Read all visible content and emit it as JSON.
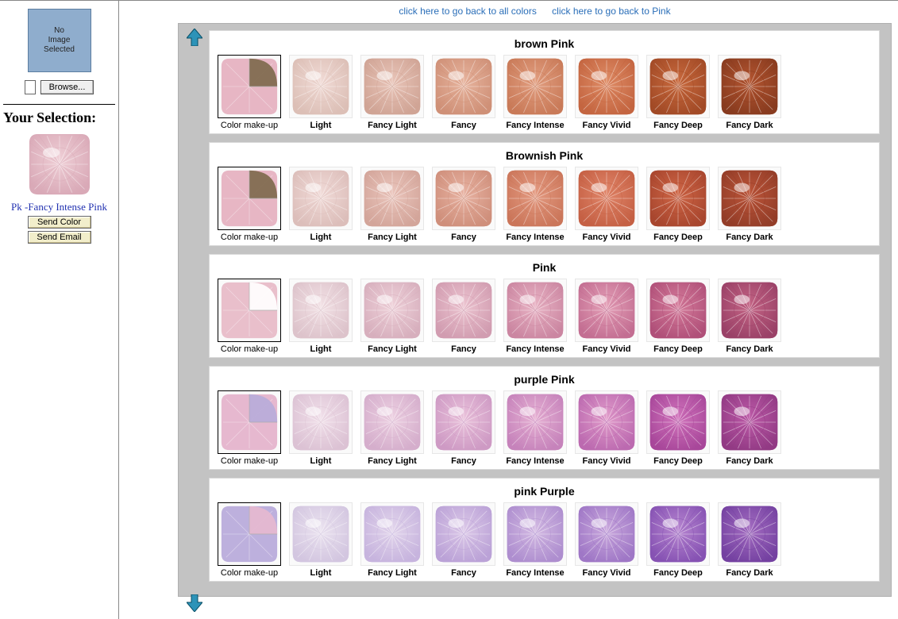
{
  "links": {
    "all_colors": "click here to go back to all colors",
    "back_pink": "click here to go back to Pink"
  },
  "sidebar": {
    "no_image_text": "No\nImage\nSelected",
    "browse_label": "Browse...",
    "your_selection_heading": "Your Selection:",
    "selection_label": "Pk -Fancy Intense Pink",
    "selection_color_light": "#efcfd6",
    "selection_color_dark": "#d9a9b7",
    "send_color_label": "Send Color",
    "send_email_label": "Send Email"
  },
  "intensity_labels": [
    "Color make-up",
    "Light",
    "Fancy Light",
    "Fancy",
    "Fancy Intense",
    "Fancy Vivid",
    "Fancy Deep",
    "Fancy Dark"
  ],
  "groups": [
    {
      "title": "brown Pink",
      "makeup": {
        "primary": "#e7b6c4",
        "secondary": "#7f6a4d"
      },
      "colors": [
        {
          "light": "#f1dbd6",
          "dark": "#dcbfb6"
        },
        {
          "light": "#e9c5b9",
          "dark": "#d0a495"
        },
        {
          "light": "#e7b49e",
          "dark": "#cf9077"
        },
        {
          "light": "#e29f81",
          "dark": "#c97a58"
        },
        {
          "light": "#df8d67",
          "dark": "#c46540"
        },
        {
          "light": "#c96a3e",
          "dark": "#a24a26"
        },
        {
          "light": "#b45530",
          "dark": "#883b1f"
        }
      ]
    },
    {
      "title": "Brownish Pink",
      "makeup": {
        "primary": "#e7b6c4",
        "secondary": "#7f6a4d"
      },
      "colors": [
        {
          "light": "#f1dbd8",
          "dark": "#dcbeba"
        },
        {
          "light": "#ebc6bd",
          "dark": "#d3a59a"
        },
        {
          "light": "#e8b3a3",
          "dark": "#cf8f7b"
        },
        {
          "light": "#e49b82",
          "dark": "#cb765a"
        },
        {
          "light": "#e1866a",
          "dark": "#c56044"
        },
        {
          "light": "#cf6646",
          "dark": "#a8462e"
        },
        {
          "light": "#bd5539",
          "dark": "#933d28"
        }
      ]
    },
    {
      "title": "Pink",
      "makeup": {
        "primary": "#e9bfcb",
        "secondary": "#ffffff"
      },
      "colors": [
        {
          "light": "#f2e1e5",
          "dark": "#ddc3cb"
        },
        {
          "light": "#efd2da",
          "dark": "#d7afbd"
        },
        {
          "light": "#ecc4d0",
          "dark": "#d19cb0"
        },
        {
          "light": "#e9b4c5",
          "dark": "#cb86a1"
        },
        {
          "light": "#e4a0b7",
          "dark": "#c36e92"
        },
        {
          "light": "#d57c9b",
          "dark": "#b05079"
        },
        {
          "light": "#c46485",
          "dark": "#9a4167"
        }
      ]
    },
    {
      "title": "purple Pink",
      "makeup": {
        "primary": "#e6b8cf",
        "secondary": "#b8abda"
      },
      "colors": [
        {
          "light": "#f1e0ea",
          "dark": "#dcc2d4"
        },
        {
          "light": "#edd1e2",
          "dark": "#d5aecc"
        },
        {
          "light": "#eac2db",
          "dark": "#ce9ac4"
        },
        {
          "light": "#e6b1d3",
          "dark": "#c683bb"
        },
        {
          "light": "#e19cca",
          "dark": "#bc6ab0"
        },
        {
          "light": "#d174bc",
          "dark": "#a8479a"
        },
        {
          "light": "#bd5ba8",
          "dark": "#923a84"
        }
      ]
    },
    {
      "title": "pink Purple",
      "makeup": {
        "primary": "#bdb0dd",
        "secondary": "#e6b8cf"
      },
      "colors": [
        {
          "light": "#ebe3f0",
          "dark": "#d3c6e0"
        },
        {
          "light": "#e3d6ec",
          "dark": "#c7b4de"
        },
        {
          "light": "#dcc9e8",
          "dark": "#bba2d7"
        },
        {
          "light": "#d4bbe3",
          "dark": "#ae8ecf"
        },
        {
          "light": "#caa9dd",
          "dark": "#9f77c6"
        },
        {
          "light": "#b786d0",
          "dark": "#8652b3"
        },
        {
          "light": "#a46dc1",
          "dark": "#7441a1"
        }
      ]
    }
  ],
  "arrow_color": "#2d93b8"
}
